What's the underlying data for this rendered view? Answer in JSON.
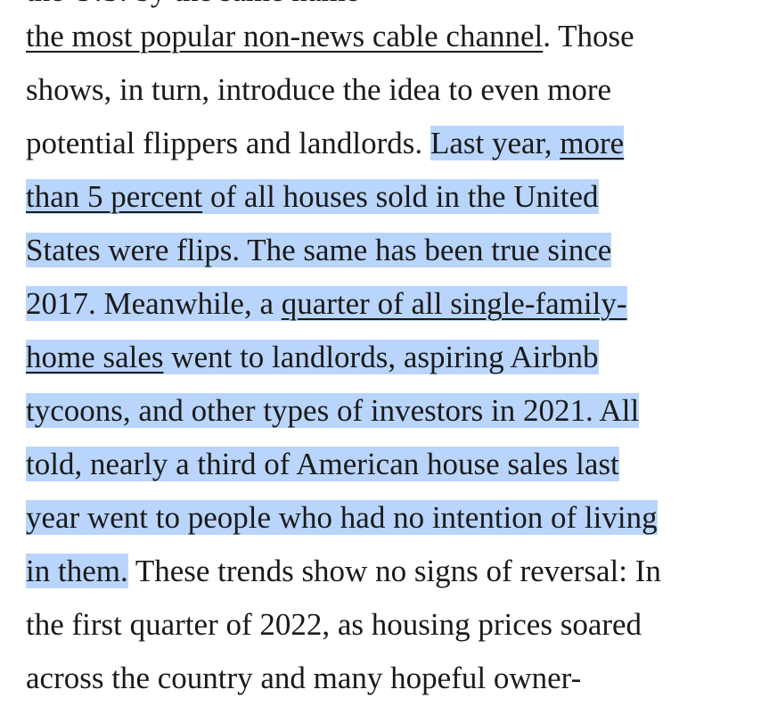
{
  "article": {
    "line0": {
      "partial": "the U.S. by the same name"
    },
    "line1": {
      "link": "the most popular non-news cable channel",
      "text": ". Those"
    },
    "line2": {
      "text": "shows, in turn, introduce the idea to even more"
    },
    "line3": {
      "text": "potential flippers and landlords. ",
      "hl_text": "Last year, ",
      "link": "more"
    },
    "line4": {
      "link": "than 5 percent",
      "hl_text": " of all houses sold in the United"
    },
    "line5": {
      "hl_text": "States were flips. The same has been true since"
    },
    "line6": {
      "hl_text": "2017. Meanwhile, a ",
      "link": "quarter of all single-family-"
    },
    "line7": {
      "link": "home sales",
      "hl_text": " went to landlords, aspiring Airbnb"
    },
    "line8": {
      "hl_text": "tycoons, and other types of investors in 2021. All"
    },
    "line9": {
      "hl_text": "told, nearly a third of American house sales last"
    },
    "line10": {
      "hl_text": "year went to people who had no intention of living"
    },
    "line11": {
      "hl_text": "in them.",
      "text": " These trends show no signs of reversal: In"
    },
    "line12": {
      "text": "the first quarter of 2022, as housing prices soared"
    },
    "line13": {
      "text": "across the country and many hopeful owner-"
    }
  },
  "colors": {
    "highlight": "#b9d5fb",
    "text": "#1a1a1a"
  }
}
